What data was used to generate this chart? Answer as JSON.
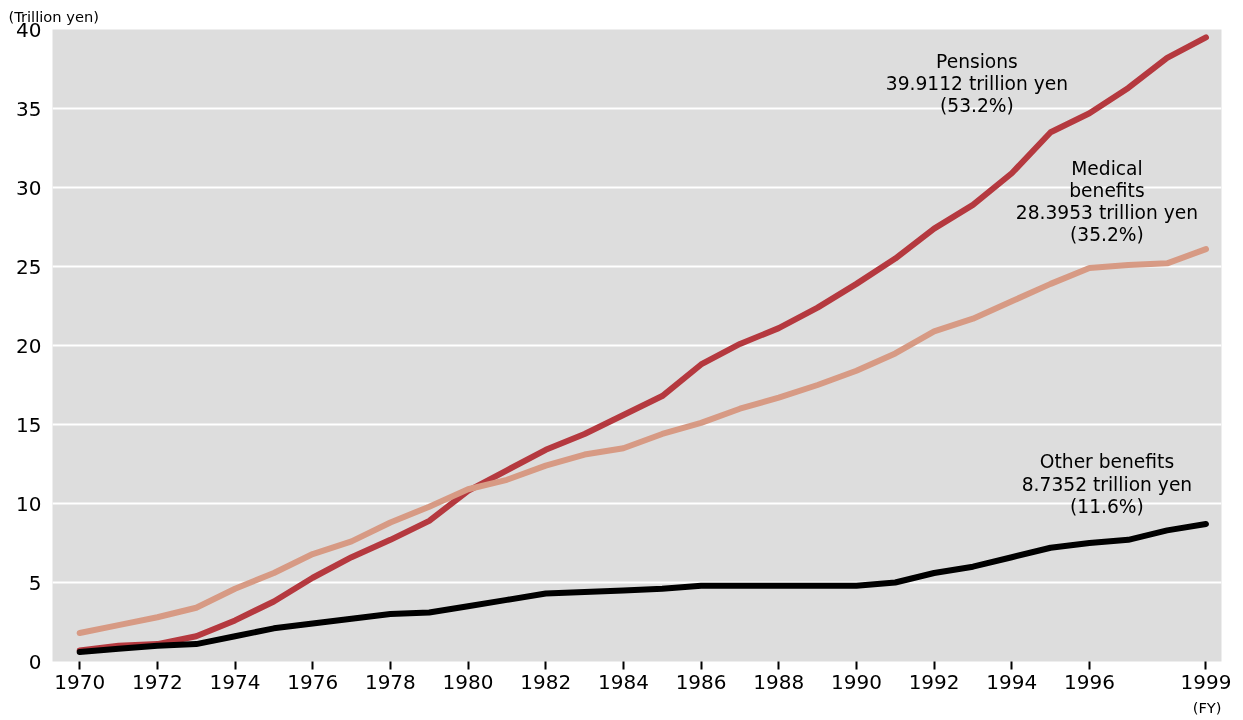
{
  "chart_data": {
    "type": "line",
    "ylabel": "(Trillion yen)",
    "xlabel": "(FY)",
    "x": [
      1970,
      1971,
      1972,
      1973,
      1974,
      1975,
      1976,
      1977,
      1978,
      1979,
      1980,
      1981,
      1982,
      1983,
      1984,
      1985,
      1986,
      1987,
      1988,
      1989,
      1990,
      1991,
      1992,
      1993,
      1994,
      1995,
      1996,
      1997,
      1998,
      1999
    ],
    "series": [
      {
        "color": "#b5393f",
        "values": [
          0.7,
          1.0,
          1.1,
          1.6,
          2.6,
          3.8,
          5.3,
          6.6,
          7.7,
          8.9,
          10.8,
          12.1,
          13.4,
          14.4,
          15.6,
          16.8,
          18.8,
          20.1,
          21.1,
          22.4,
          23.9,
          25.5,
          27.4,
          28.9,
          30.9,
          33.5,
          34.7,
          36.3,
          38.2,
          39.5
        ]
      },
      {
        "color": "#d79a84",
        "values": [
          1.8,
          2.3,
          2.8,
          3.4,
          4.6,
          5.6,
          6.8,
          7.6,
          8.8,
          9.8,
          10.9,
          11.5,
          12.4,
          13.1,
          13.5,
          14.4,
          15.1,
          16.0,
          16.7,
          17.5,
          18.4,
          19.5,
          20.9,
          21.7,
          22.8,
          23.9,
          24.9,
          25.1,
          25.2,
          26.1
        ]
      },
      {
        "color": "#000000",
        "values": [
          0.6,
          0.8,
          1.0,
          1.1,
          1.6,
          2.1,
          2.4,
          2.7,
          3.0,
          3.1,
          3.5,
          3.9,
          4.3,
          4.4,
          4.5,
          4.6,
          4.8,
          4.8,
          4.8,
          4.8,
          4.8,
          5.0,
          5.6,
          6.0,
          6.6,
          7.2,
          7.5,
          7.7,
          8.3,
          8.7
        ]
      }
    ],
    "xlim": [
      1969.3,
      1999.4
    ],
    "ylim": [
      0,
      40
    ],
    "xticks": [
      1970,
      1972,
      1974,
      1976,
      1978,
      1980,
      1982,
      1984,
      1986,
      1988,
      1990,
      1992,
      1994,
      1996,
      1999
    ],
    "yticks": [
      0,
      5,
      10,
      15,
      20,
      25,
      30,
      35,
      40
    ],
    "grid": "y",
    "marker": "none",
    "line_style": "solid",
    "annotations": [
      "Pensions\n39.9112 trillion yen\n(53.2%)",
      "Medical\nbenefits\n28.3953 trillion yen\n(35.2%)",
      "Other benefits\n8.7352 trillion yen\n(11.6%)"
    ]
  }
}
